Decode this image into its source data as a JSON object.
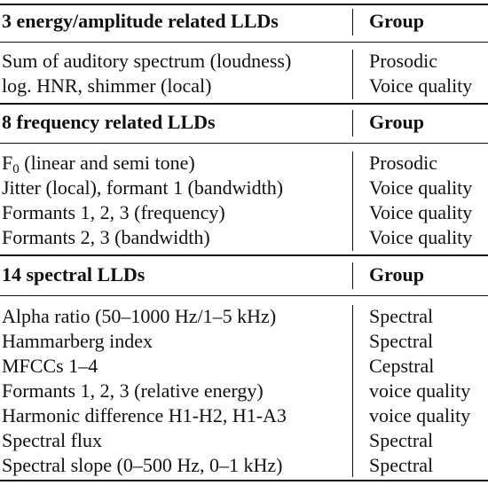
{
  "sections": [
    {
      "header": {
        "feature": "3 energy/amplitude related LLDs",
        "group": "Group"
      },
      "rows": [
        {
          "feature": "Sum of auditory spectrum (loudness)",
          "group": "Prosodic"
        },
        {
          "feature": "log. HNR, shimmer (local)",
          "group": "Voice quality"
        }
      ]
    },
    {
      "header": {
        "feature": "8 frequency related LLDs",
        "group": "Group"
      },
      "rows": [
        {
          "feature_main": "F",
          "feature_sub": "0",
          "feature_rest": " (linear and semi tone)",
          "group": "Prosodic"
        },
        {
          "feature": "Jitter (local), formant 1 (bandwidth)",
          "group": "Voice quality"
        },
        {
          "feature": "Formants 1, 2, 3 (frequency)",
          "group": "Voice quality"
        },
        {
          "feature": "Formants 2, 3 (bandwidth)",
          "group": "Voice quality"
        }
      ]
    },
    {
      "header": {
        "feature": "14 spectral LLDs",
        "group": "Group"
      },
      "rows": [
        {
          "feature": "Alpha ratio (50–1000 Hz/1–5 kHz)",
          "group": "Spectral"
        },
        {
          "feature": "Hammarberg index",
          "group": "Spectral"
        },
        {
          "feature": "MFCCs 1–4",
          "group": "Cepstral"
        },
        {
          "feature": "Formants 1, 2, 3 (relative energy)",
          "group": "voice quality"
        },
        {
          "feature": "Harmonic difference H1-H2, H1-A3",
          "group": "voice quality"
        },
        {
          "feature": "Spectral flux",
          "group": "Spectral"
        },
        {
          "feature": "Spectral slope (0–500 Hz, 0–1 kHz)",
          "group": "Spectral"
        }
      ]
    }
  ]
}
